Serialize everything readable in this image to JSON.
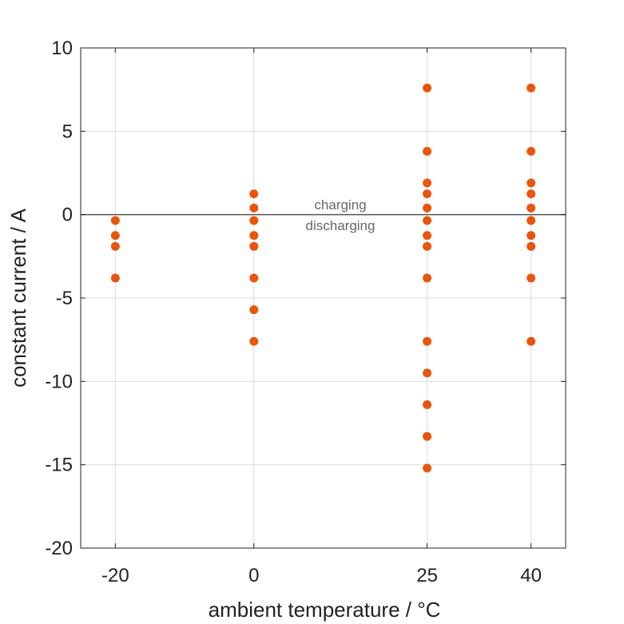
{
  "chart_data": {
    "type": "scatter",
    "title": "",
    "xlabel": "ambient temperature / °C",
    "ylabel": "constant current / A",
    "xlim": [
      -25,
      45
    ],
    "ylim": [
      -20,
      10
    ],
    "x_ticks": [
      -20,
      0,
      25,
      40
    ],
    "y_ticks": [
      10,
      5,
      0,
      -5,
      -10,
      -15,
      -20
    ],
    "grid": true,
    "reference_line": 0,
    "marker_color": "#e8560e",
    "annotations": [
      "charging",
      "discharging"
    ],
    "points": [
      {
        "x": -20,
        "y": -0.35
      },
      {
        "x": -20,
        "y": -1.25
      },
      {
        "x": -20,
        "y": -1.9
      },
      {
        "x": -20,
        "y": -3.8
      },
      {
        "x": 0,
        "y": 1.25
      },
      {
        "x": 0,
        "y": 0.4
      },
      {
        "x": 0,
        "y": -0.35
      },
      {
        "x": 0,
        "y": -1.25
      },
      {
        "x": 0,
        "y": -1.9
      },
      {
        "x": 0,
        "y": -3.8
      },
      {
        "x": 0,
        "y": -5.7
      },
      {
        "x": 0,
        "y": -7.6
      },
      {
        "x": 25,
        "y": 7.6
      },
      {
        "x": 25,
        "y": 3.8
      },
      {
        "x": 25,
        "y": 1.9
      },
      {
        "x": 25,
        "y": 1.25
      },
      {
        "x": 25,
        "y": 0.4
      },
      {
        "x": 25,
        "y": -0.35
      },
      {
        "x": 25,
        "y": -1.25
      },
      {
        "x": 25,
        "y": -1.9
      },
      {
        "x": 25,
        "y": -3.8
      },
      {
        "x": 25,
        "y": -7.6
      },
      {
        "x": 25,
        "y": -9.5
      },
      {
        "x": 25,
        "y": -11.4
      },
      {
        "x": 25,
        "y": -13.3
      },
      {
        "x": 25,
        "y": -15.2
      },
      {
        "x": 40,
        "y": 7.6
      },
      {
        "x": 40,
        "y": 3.8
      },
      {
        "x": 40,
        "y": 1.9
      },
      {
        "x": 40,
        "y": 1.25
      },
      {
        "x": 40,
        "y": 0.4
      },
      {
        "x": 40,
        "y": -0.35
      },
      {
        "x": 40,
        "y": -1.25
      },
      {
        "x": 40,
        "y": -1.9
      },
      {
        "x": 40,
        "y": -3.8
      },
      {
        "x": 40,
        "y": -7.6
      }
    ]
  }
}
